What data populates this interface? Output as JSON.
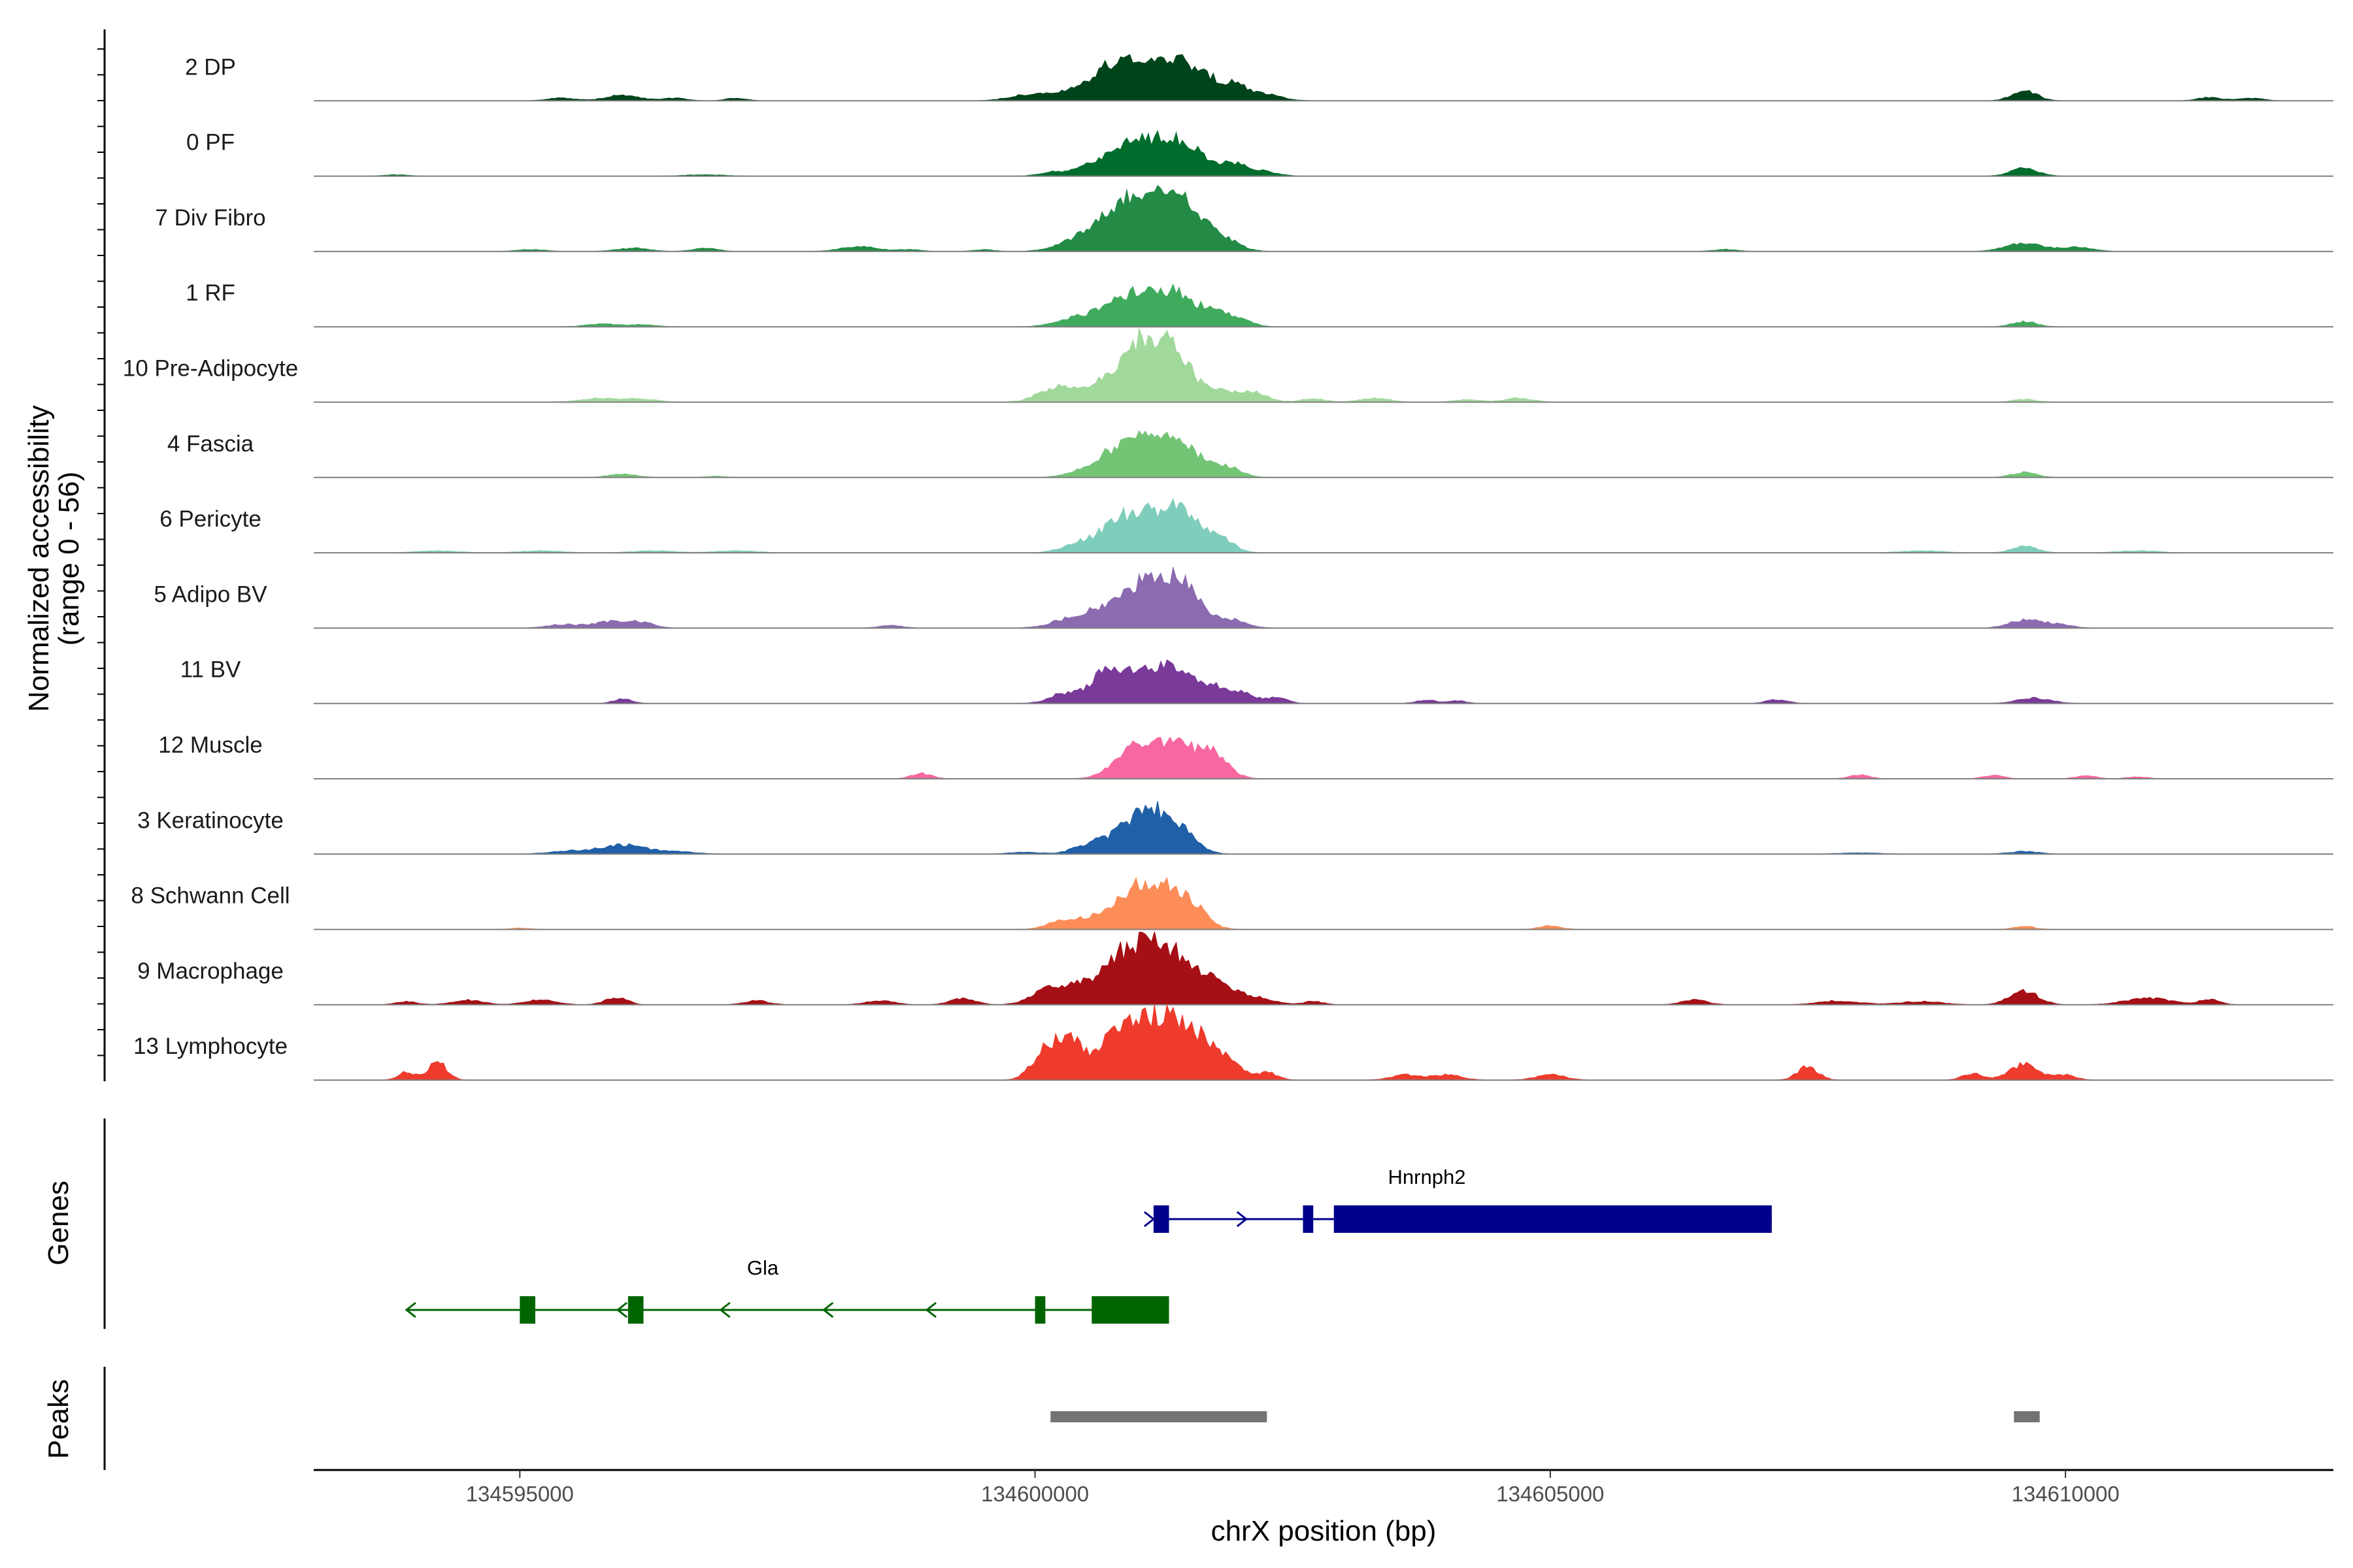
{
  "chart_data": {
    "type": "area",
    "title": "",
    "ylabel_line1": "Normalized accessibility",
    "ylabel_line2": "(range 0 - 56)",
    "xlabel": "chrX position (bp)",
    "y_range": [
      0,
      56
    ],
    "x_range": [
      134593000,
      134612600
    ],
    "x_ticks": [
      {
        "value": 134595000,
        "label": "134595000"
      },
      {
        "value": 134600000,
        "label": "134600000"
      },
      {
        "value": 134605000,
        "label": "134605000"
      },
      {
        "value": 134610000,
        "label": "134610000"
      }
    ],
    "tracks": [
      {
        "name": "2 DP",
        "color": "#00441b",
        "peaks": [
          [
            134596000,
            0.09,
            160
          ],
          [
            134595400,
            0.04,
            140
          ],
          [
            134596500,
            0.04,
            120
          ],
          [
            134597100,
            0.04,
            100
          ],
          [
            134599900,
            0.08,
            170
          ],
          [
            134600400,
            0.16,
            220
          ],
          [
            134600750,
            0.22,
            200
          ],
          [
            134601050,
            0.58,
            280
          ],
          [
            134601450,
            0.36,
            140
          ],
          [
            134601700,
            0.26,
            110
          ],
          [
            134601950,
            0.24,
            110
          ],
          [
            134602250,
            0.1,
            150
          ],
          [
            134609600,
            0.16,
            120
          ],
          [
            134611400,
            0.05,
            120
          ],
          [
            134611800,
            0.04,
            120
          ]
        ]
      },
      {
        "name": "0 PF",
        "color": "#006d2c",
        "peaks": [
          [
            134600150,
            0.05,
            120
          ],
          [
            134600600,
            0.12,
            200
          ],
          [
            134601100,
            0.58,
            300
          ],
          [
            134601500,
            0.26,
            150
          ],
          [
            134601900,
            0.18,
            130
          ],
          [
            134602200,
            0.08,
            140
          ],
          [
            134609600,
            0.12,
            130
          ],
          [
            134593800,
            0.02,
            120
          ],
          [
            134596800,
            0.02,
            200
          ]
        ]
      },
      {
        "name": "7 Div Fibro",
        "color": "#238b45",
        "peaks": [
          [
            134595100,
            0.03,
            140
          ],
          [
            134596100,
            0.05,
            160
          ],
          [
            134596800,
            0.05,
            120
          ],
          [
            134598300,
            0.07,
            190
          ],
          [
            134598800,
            0.03,
            100
          ],
          [
            134599500,
            0.03,
            100
          ],
          [
            134600400,
            0.12,
            200
          ],
          [
            134600800,
            0.22,
            220
          ],
          [
            134601100,
            0.75,
            330
          ],
          [
            134601500,
            0.36,
            180
          ],
          [
            134601850,
            0.12,
            150
          ],
          [
            134606700,
            0.03,
            120
          ],
          [
            134609600,
            0.12,
            180
          ],
          [
            134610100,
            0.06,
            160
          ]
        ]
      },
      {
        "name": "1 RF",
        "color": "#41ab5d",
        "peaks": [
          [
            134595800,
            0.04,
            160
          ],
          [
            134596200,
            0.03,
            140
          ],
          [
            134600350,
            0.1,
            180
          ],
          [
            134600700,
            0.16,
            200
          ],
          [
            134601100,
            0.54,
            260
          ],
          [
            134601450,
            0.26,
            140
          ],
          [
            134601750,
            0.22,
            120
          ],
          [
            134602000,
            0.1,
            120
          ],
          [
            134609600,
            0.08,
            120
          ]
        ]
      },
      {
        "name": "10 Pre-Adipocyte",
        "color": "#a1d99b",
        "peaks": [
          [
            134595800,
            0.06,
            200
          ],
          [
            134596200,
            0.04,
            150
          ],
          [
            134600200,
            0.22,
            170
          ],
          [
            134600600,
            0.22,
            170
          ],
          [
            134600900,
            0.34,
            180
          ],
          [
            134601150,
            0.82,
            200
          ],
          [
            134601400,
            0.4,
            150
          ],
          [
            134601750,
            0.18,
            140
          ],
          [
            134602100,
            0.16,
            140
          ],
          [
            134602700,
            0.05,
            120
          ],
          [
            134603300,
            0.06,
            140
          ],
          [
            134604200,
            0.04,
            120
          ],
          [
            134604700,
            0.06,
            140
          ],
          [
            134609600,
            0.04,
            120
          ]
        ]
      },
      {
        "name": "4 Fascia",
        "color": "#74c476",
        "peaks": [
          [
            134596000,
            0.05,
            140
          ],
          [
            134596900,
            0.02,
            100
          ],
          [
            134600500,
            0.08,
            180
          ],
          [
            134600750,
            0.14,
            160
          ],
          [
            134601100,
            0.6,
            280
          ],
          [
            134601450,
            0.3,
            150
          ],
          [
            134601850,
            0.16,
            140
          ],
          [
            134609600,
            0.08,
            120
          ]
        ]
      },
      {
        "name": "6 Pericyte",
        "color": "#7fcdbb",
        "peaks": [
          [
            134594200,
            0.03,
            200
          ],
          [
            134595200,
            0.03,
            200
          ],
          [
            134596300,
            0.03,
            200
          ],
          [
            134597100,
            0.03,
            200
          ],
          [
            134600400,
            0.12,
            150
          ],
          [
            134600750,
            0.18,
            150
          ],
          [
            134601100,
            0.62,
            290
          ],
          [
            134601450,
            0.34,
            150
          ],
          [
            134601800,
            0.2,
            130
          ],
          [
            134609600,
            0.1,
            120
          ],
          [
            134608600,
            0.03,
            200
          ],
          [
            134610700,
            0.03,
            200
          ]
        ]
      },
      {
        "name": "5 Adipo BV",
        "color": "#8c6bb1",
        "peaks": [
          [
            134595400,
            0.05,
            150
          ],
          [
            134595900,
            0.1,
            200
          ],
          [
            134596200,
            0.06,
            120
          ],
          [
            134598600,
            0.04,
            120
          ],
          [
            134600300,
            0.1,
            180
          ],
          [
            134600600,
            0.2,
            180
          ],
          [
            134601150,
            0.8,
            260
          ],
          [
            134601500,
            0.3,
            150
          ],
          [
            134601900,
            0.12,
            150
          ],
          [
            134609600,
            0.12,
            150
          ],
          [
            134609900,
            0.06,
            150
          ]
        ]
      },
      {
        "name": "11 BV",
        "color": "#7a3a9a",
        "peaks": [
          [
            134596000,
            0.07,
            90
          ],
          [
            134600300,
            0.16,
            150
          ],
          [
            134600650,
            0.34,
            120
          ],
          [
            134601000,
            0.48,
            220
          ],
          [
            134601350,
            0.44,
            150
          ],
          [
            134601700,
            0.26,
            150
          ],
          [
            134602000,
            0.14,
            140
          ],
          [
            134602350,
            0.08,
            100
          ],
          [
            134603800,
            0.05,
            100
          ],
          [
            134604100,
            0.04,
            80
          ],
          [
            134607200,
            0.06,
            100
          ],
          [
            134609700,
            0.08,
            160
          ]
        ]
      },
      {
        "name": "12 Muscle",
        "color": "#f768a1",
        "peaks": [
          [
            134598900,
            0.08,
            100
          ],
          [
            134601000,
            0.5,
            200
          ],
          [
            134601400,
            0.48,
            200
          ],
          [
            134601750,
            0.3,
            140
          ],
          [
            134608000,
            0.06,
            100
          ],
          [
            134609300,
            0.05,
            100
          ],
          [
            134610200,
            0.05,
            100
          ],
          [
            134610700,
            0.03,
            100
          ]
        ]
      },
      {
        "name": "3 Keratinocyte",
        "color": "#2060a8",
        "peaks": [
          [
            134595500,
            0.05,
            200
          ],
          [
            134596000,
            0.14,
            200
          ],
          [
            134596500,
            0.04,
            200
          ],
          [
            134599900,
            0.03,
            150
          ],
          [
            134600500,
            0.12,
            150
          ],
          [
            134600700,
            0.08,
            120
          ],
          [
            134601100,
            0.7,
            230
          ],
          [
            134601450,
            0.18,
            140
          ],
          [
            134608000,
            0.02,
            200
          ],
          [
            134609600,
            0.04,
            150
          ]
        ]
      },
      {
        "name": "8 Schwann Cell",
        "color": "#fc8d59",
        "peaks": [
          [
            134600250,
            0.12,
            140
          ],
          [
            134600600,
            0.16,
            160
          ],
          [
            134601100,
            0.74,
            250
          ],
          [
            134601500,
            0.3,
            150
          ],
          [
            134605000,
            0.06,
            100
          ],
          [
            134609600,
            0.05,
            100
          ],
          [
            134595000,
            0.02,
            100
          ]
        ]
      },
      {
        "name": "9 Macrophage",
        "color": "#a50f15",
        "peaks": [
          [
            134593900,
            0.05,
            100
          ],
          [
            134594500,
            0.07,
            150
          ],
          [
            134595200,
            0.08,
            150
          ],
          [
            134595900,
            0.08,
            100
          ],
          [
            134596000,
            0.05,
            80
          ],
          [
            134597300,
            0.06,
            120
          ],
          [
            134598500,
            0.06,
            140
          ],
          [
            134599300,
            0.1,
            120
          ],
          [
            134600100,
            0.18,
            160
          ],
          [
            134600400,
            0.22,
            180
          ],
          [
            134600700,
            0.26,
            160
          ],
          [
            134601000,
            0.8,
            220
          ],
          [
            134601350,
            0.56,
            200
          ],
          [
            134601700,
            0.3,
            180
          ],
          [
            134602100,
            0.12,
            180
          ],
          [
            134602700,
            0.05,
            100
          ],
          [
            134606400,
            0.08,
            120
          ],
          [
            134607800,
            0.06,
            200
          ],
          [
            134608600,
            0.05,
            200
          ],
          [
            134609600,
            0.2,
            140
          ],
          [
            134610800,
            0.1,
            220
          ],
          [
            134611400,
            0.08,
            100
          ]
        ]
      },
      {
        "name": "13 Lymphocyte",
        "color": "#ef3b2c",
        "peaks": [
          [
            134593900,
            0.12,
            80
          ],
          [
            134594200,
            0.28,
            90
          ],
          [
            134600100,
            0.42,
            130
          ],
          [
            134600350,
            0.6,
            130
          ],
          [
            134600700,
            0.42,
            140
          ],
          [
            134601000,
            0.9,
            170
          ],
          [
            134601300,
            0.72,
            150
          ],
          [
            134601600,
            0.6,
            160
          ],
          [
            134601900,
            0.22,
            120
          ],
          [
            134602250,
            0.12,
            100
          ],
          [
            134603600,
            0.08,
            140
          ],
          [
            134604000,
            0.08,
            140
          ],
          [
            134605000,
            0.08,
            140
          ],
          [
            134607500,
            0.2,
            100
          ],
          [
            134609100,
            0.1,
            100
          ],
          [
            134609600,
            0.24,
            140
          ],
          [
            134610000,
            0.08,
            100
          ]
        ]
      }
    ],
    "genes": [
      {
        "name": "Hnrnph2",
        "color": "#00008b",
        "strand": "+",
        "start": 134601150,
        "end": 134607150,
        "exons": [
          [
            134601150,
            134601300
          ],
          [
            134602600,
            134602700
          ],
          [
            134602900,
            134607150
          ]
        ],
        "arrows": [
          134601150,
          134602050
        ]
      },
      {
        "name": "Gla",
        "color": "#006400",
        "strand": "-",
        "start": 134593900,
        "end": 134601300,
        "exons": [
          [
            134595000,
            134595150
          ],
          [
            134596050,
            134596200
          ],
          [
            134600000,
            134600100
          ],
          [
            134600550,
            134601300
          ]
        ],
        "arrows": [
          134593900,
          134595950,
          134596950,
          134597950,
          134598950
        ]
      }
    ],
    "peaks_track": {
      "label": "Peaks",
      "color": "#737373",
      "regions": [
        [
          134600150,
          134602250
        ],
        [
          134609500,
          134609750
        ]
      ]
    },
    "genes_track_label": "Genes"
  }
}
